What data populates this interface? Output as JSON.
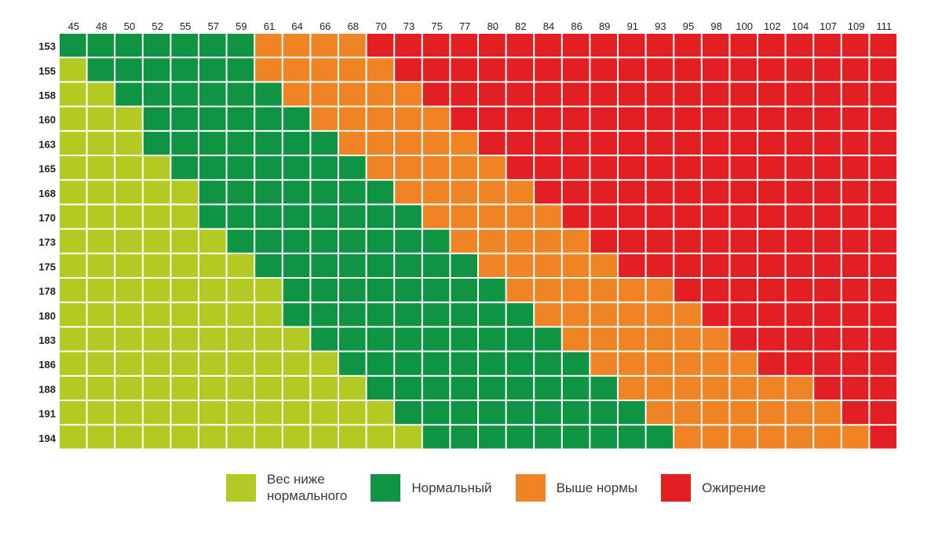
{
  "chart_data": {
    "type": "heatmap",
    "x": [
      "45",
      "48",
      "50",
      "52",
      "55",
      "57",
      "59",
      "61",
      "64",
      "66",
      "68",
      "70",
      "73",
      "75",
      "77",
      "80",
      "82",
      "84",
      "86",
      "89",
      "91",
      "93",
      "95",
      "98",
      "100",
      "102",
      "104",
      "107",
      "109",
      "111"
    ],
    "y": [
      "153",
      "155",
      "158",
      "160",
      "163",
      "165",
      "168",
      "170",
      "173",
      "175",
      "178",
      "180",
      "183",
      "186",
      "188",
      "191",
      "194"
    ],
    "categories": [
      {
        "key": "under",
        "label": "Вес ниже\nнормального",
        "color": "#b1cb22"
      },
      {
        "key": "normal",
        "label": "Нормальный",
        "color": "#0f9444"
      },
      {
        "key": "over",
        "label": "Выше нормы",
        "color": "#ef8424"
      },
      {
        "key": "obese",
        "label": "Ожирение",
        "color": "#e41f24"
      }
    ],
    "z": [
      [
        1,
        1,
        1,
        1,
        1,
        1,
        1,
        2,
        2,
        2,
        2,
        3,
        3,
        3,
        3,
        3,
        3,
        3,
        3,
        3,
        3,
        3,
        3,
        3,
        3,
        3,
        3,
        3,
        3,
        3
      ],
      [
        0,
        1,
        1,
        1,
        1,
        1,
        1,
        2,
        2,
        2,
        2,
        2,
        3,
        3,
        3,
        3,
        3,
        3,
        3,
        3,
        3,
        3,
        3,
        3,
        3,
        3,
        3,
        3,
        3,
        3
      ],
      [
        0,
        0,
        1,
        1,
        1,
        1,
        1,
        1,
        2,
        2,
        2,
        2,
        2,
        3,
        3,
        3,
        3,
        3,
        3,
        3,
        3,
        3,
        3,
        3,
        3,
        3,
        3,
        3,
        3,
        3
      ],
      [
        0,
        0,
        0,
        1,
        1,
        1,
        1,
        1,
        1,
        2,
        2,
        2,
        2,
        2,
        3,
        3,
        3,
        3,
        3,
        3,
        3,
        3,
        3,
        3,
        3,
        3,
        3,
        3,
        3,
        3
      ],
      [
        0,
        0,
        0,
        1,
        1,
        1,
        1,
        1,
        1,
        1,
        2,
        2,
        2,
        2,
        2,
        3,
        3,
        3,
        3,
        3,
        3,
        3,
        3,
        3,
        3,
        3,
        3,
        3,
        3,
        3
      ],
      [
        0,
        0,
        0,
        0,
        1,
        1,
        1,
        1,
        1,
        1,
        1,
        2,
        2,
        2,
        2,
        2,
        3,
        3,
        3,
        3,
        3,
        3,
        3,
        3,
        3,
        3,
        3,
        3,
        3,
        3
      ],
      [
        0,
        0,
        0,
        0,
        0,
        1,
        1,
        1,
        1,
        1,
        1,
        1,
        2,
        2,
        2,
        2,
        2,
        3,
        3,
        3,
        3,
        3,
        3,
        3,
        3,
        3,
        3,
        3,
        3,
        3
      ],
      [
        0,
        0,
        0,
        0,
        0,
        1,
        1,
        1,
        1,
        1,
        1,
        1,
        1,
        2,
        2,
        2,
        2,
        2,
        3,
        3,
        3,
        3,
        3,
        3,
        3,
        3,
        3,
        3,
        3,
        3
      ],
      [
        0,
        0,
        0,
        0,
        0,
        0,
        1,
        1,
        1,
        1,
        1,
        1,
        1,
        1,
        2,
        2,
        2,
        2,
        2,
        3,
        3,
        3,
        3,
        3,
        3,
        3,
        3,
        3,
        3,
        3
      ],
      [
        0,
        0,
        0,
        0,
        0,
        0,
        0,
        1,
        1,
        1,
        1,
        1,
        1,
        1,
        1,
        2,
        2,
        2,
        2,
        2,
        3,
        3,
        3,
        3,
        3,
        3,
        3,
        3,
        3,
        3
      ],
      [
        0,
        0,
        0,
        0,
        0,
        0,
        0,
        0,
        1,
        1,
        1,
        1,
        1,
        1,
        1,
        1,
        2,
        2,
        2,
        2,
        2,
        2,
        3,
        3,
        3,
        3,
        3,
        3,
        3,
        3
      ],
      [
        0,
        0,
        0,
        0,
        0,
        0,
        0,
        0,
        1,
        1,
        1,
        1,
        1,
        1,
        1,
        1,
        1,
        2,
        2,
        2,
        2,
        2,
        2,
        3,
        3,
        3,
        3,
        3,
        3,
        3
      ],
      [
        0,
        0,
        0,
        0,
        0,
        0,
        0,
        0,
        0,
        1,
        1,
        1,
        1,
        1,
        1,
        1,
        1,
        1,
        2,
        2,
        2,
        2,
        2,
        2,
        3,
        3,
        3,
        3,
        3,
        3
      ],
      [
        0,
        0,
        0,
        0,
        0,
        0,
        0,
        0,
        0,
        0,
        1,
        1,
        1,
        1,
        1,
        1,
        1,
        1,
        1,
        2,
        2,
        2,
        2,
        2,
        2,
        3,
        3,
        3,
        3,
        3
      ],
      [
        0,
        0,
        0,
        0,
        0,
        0,
        0,
        0,
        0,
        0,
        0,
        1,
        1,
        1,
        1,
        1,
        1,
        1,
        1,
        1,
        2,
        2,
        2,
        2,
        2,
        2,
        2,
        3,
        3,
        3
      ],
      [
        0,
        0,
        0,
        0,
        0,
        0,
        0,
        0,
        0,
        0,
        0,
        0,
        1,
        1,
        1,
        1,
        1,
        1,
        1,
        1,
        1,
        2,
        2,
        2,
        2,
        2,
        2,
        2,
        3,
        3
      ],
      [
        0,
        0,
        0,
        0,
        0,
        0,
        0,
        0,
        0,
        0,
        0,
        0,
        0,
        1,
        1,
        1,
        1,
        1,
        1,
        1,
        1,
        1,
        2,
        2,
        2,
        2,
        2,
        2,
        2,
        3
      ]
    ],
    "legend_position": "bottom"
  }
}
